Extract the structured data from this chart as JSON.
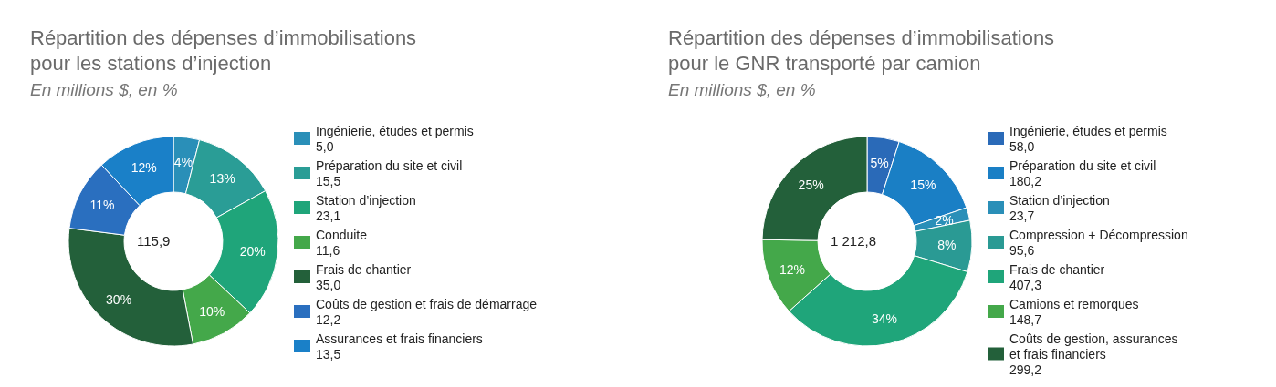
{
  "chart_data": [
    {
      "type": "donut",
      "title": "Répartition des dépenses d’immobilisations\npour les stations d’injection",
      "subtitle": "En millions $, en %",
      "categories": [
        "Ingénierie, études et permis\n5,0",
        "Préparation du site et civil\n15,5",
        "Station d’injection\n23,1",
        "Conduite\n11,6",
        "Frais de chantier\n35,0",
        "Coûts de gestion et frais de démarrage\n12,2",
        "Assurances et frais financiers\n13,5"
      ],
      "values": [
        4,
        13,
        20,
        10,
        30,
        11,
        12
      ],
      "value_labels": [
        "4%",
        "13%",
        "20%",
        "10%",
        "30%",
        "11%",
        "12%"
      ],
      "colors": [
        "#2a8fb8",
        "#2a9d96",
        "#1fa57a",
        "#44a84a",
        "#23603a",
        "#2a6fbf",
        "#1a80c8"
      ],
      "annotations": [
        "115,9"
      ],
      "legend": "right"
    },
    {
      "type": "donut",
      "title": "Répartition des dépenses d’immobilisations\npour le GNR transporté par camion",
      "subtitle": "En millions $, en %",
      "categories": [
        "Ingénierie, études et permis\n58,0",
        "Préparation du site et civil\n180,2",
        "Station d’injection\n23,7",
        "Compression + Décompression\n95,6",
        "Frais de chantier\n407,3",
        "Camions et remorques\n148,7",
        "Coûts de gestion, assurances\net frais financiers\n299,2"
      ],
      "values": [
        5,
        15,
        2,
        8,
        34,
        12,
        25
      ],
      "value_labels": [
        "5%",
        "15%",
        "2%",
        "8%",
        "34%",
        "12%",
        "25%"
      ],
      "colors": [
        "#2a6ab8",
        "#1a7fc5",
        "#2a8fb8",
        "#2a9a94",
        "#1fa57a",
        "#44a84a",
        "#23603a"
      ],
      "annotations": [
        "1 212,8"
      ],
      "legend": "right"
    }
  ]
}
